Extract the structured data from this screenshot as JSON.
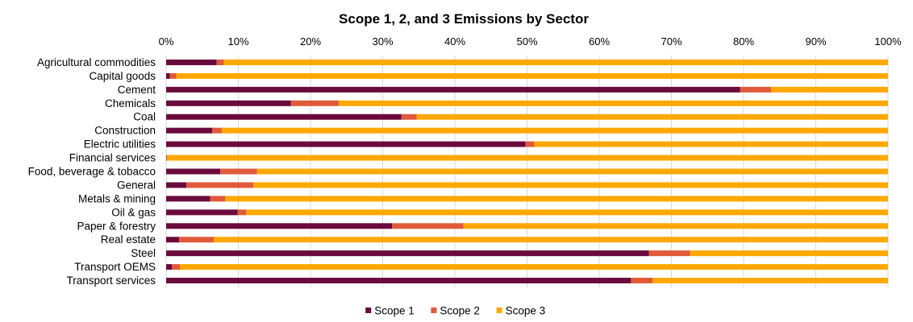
{
  "chart_data": {
    "type": "bar",
    "orientation": "horizontal",
    "stacked": "percent",
    "title": "Scope 1, 2, and 3 Emissions by Sector",
    "xlim": [
      0,
      100
    ],
    "x_ticks": [
      "0%",
      "10%",
      "20%",
      "30%",
      "40%",
      "50%",
      "60%",
      "70%",
      "80%",
      "90%",
      "100%"
    ],
    "x_axis_position": "top",
    "grid": true,
    "legend_position": "bottom",
    "categories": [
      "Agricultural commodities",
      "Capital goods",
      "Cement",
      "Chemicals",
      "Coal",
      "Construction",
      "Electric utilities",
      "Financial services",
      "Food, beverage & tobacco",
      "General",
      "Metals & mining",
      "Oil & gas",
      "Paper & forestry",
      "Real estate",
      "Steel",
      "Transport OEMS",
      "Transport services"
    ],
    "series": [
      {
        "name": "Scope 1",
        "color": "#6b0a3c",
        "values": [
          7.0,
          0.5,
          79.5,
          17.3,
          32.6,
          6.4,
          49.8,
          0.05,
          7.5,
          2.8,
          6.1,
          9.9,
          31.3,
          1.8,
          66.9,
          0.8,
          64.4
        ]
      },
      {
        "name": "Scope 2",
        "color": "#e05a3a",
        "values": [
          1.0,
          0.9,
          4.3,
          6.6,
          2.1,
          1.3,
          1.2,
          0.05,
          5.1,
          9.3,
          2.1,
          1.2,
          9.9,
          4.8,
          5.7,
          1.1,
          3.0
        ]
      },
      {
        "name": "Scope 3",
        "color": "#ffa800",
        "values": [
          92.0,
          98.6,
          16.2,
          76.1,
          65.3,
          92.3,
          49.0,
          99.9,
          87.4,
          87.9,
          91.8,
          88.9,
          58.8,
          93.4,
          27.4,
          98.1,
          32.6
        ]
      }
    ]
  }
}
